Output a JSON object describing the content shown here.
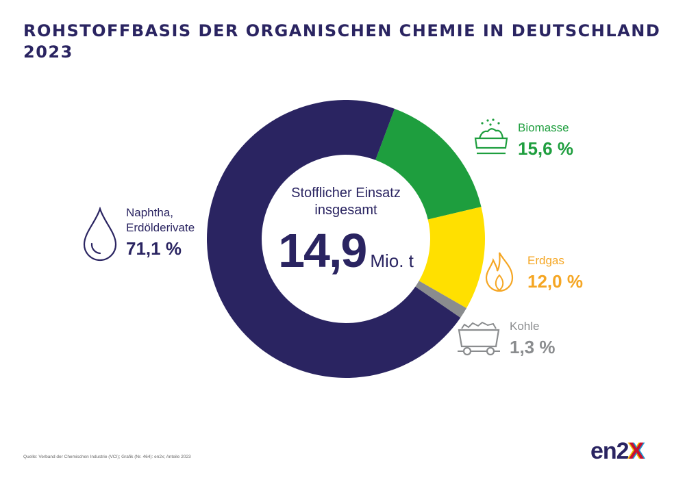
{
  "title": "ROHSTOFFBASIS DER ORGANISCHEN CHEMIE IN DEUTSCHLAND 2023",
  "chart_data": {
    "type": "pie",
    "title": "ROHSTOFFBASIS DER ORGANISCHEN CHEMIE IN DEUTSCHLAND 2023",
    "categories": [
      "Naphtha, Erdölderivate",
      "Biomasse",
      "Erdgas",
      "Kohle"
    ],
    "values": [
      71.1,
      15.6,
      12.0,
      1.3
    ],
    "unit": "%",
    "colors": [
      "#2a2461",
      "#1e9e3e",
      "#ffe000",
      "#8a8c8e"
    ],
    "center_label": "Stofflicher Einsatz insgesamt",
    "center_value": "14,9",
    "center_unit": "Mio. t"
  },
  "legend": [
    {
      "name_lines": [
        "Naphtha,",
        "Erdölderivate"
      ],
      "pct": "71,1 %",
      "color": "#2a2461",
      "icon": "drop-icon"
    },
    {
      "name_lines": [
        "Biomasse"
      ],
      "pct": "15,6 %",
      "color": "#1e9e3e",
      "icon": "biomass-icon"
    },
    {
      "name_lines": [
        "Erdgas"
      ],
      "pct": "12,0 %",
      "color": "#f5a623",
      "icon": "flame-icon"
    },
    {
      "name_lines": [
        "Kohle"
      ],
      "pct": "1,3 %",
      "color": "#8a8c8e",
      "icon": "coal-cart-icon"
    }
  ],
  "source": "Quelle: Verband der Chemischen Industrie (VCI); Grafik (Nr. 464): en2x; Anteile 2023",
  "logo": {
    "main": "en2",
    "x": "X"
  }
}
